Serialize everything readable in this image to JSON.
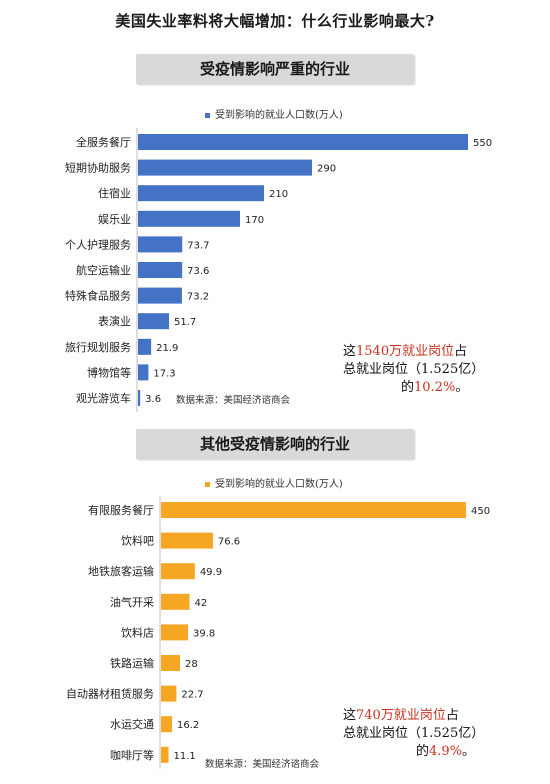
{
  "main_title": "美国失业率料将大幅增加：什么行业影响最大?",
  "source_note": "数据来源：美国经济谘商会",
  "chart_data": [
    {
      "type": "bar",
      "orientation": "horizontal",
      "title": "受疫情影响严重的行业",
      "legend": "受到影响的就业人口数(万人)",
      "color": "#4472c4",
      "xlim": [
        0,
        550
      ],
      "categories": [
        "全服务餐厅",
        "短期协助服务",
        "住宿业",
        "娱乐业",
        "个人护理服务",
        "航空运输业",
        "特殊食品服务",
        "表演业",
        "旅行规划服务",
        "博物馆等",
        "观光游览车"
      ],
      "series": [
        {
          "values": [
            550,
            290,
            210,
            170,
            73.7,
            73.6,
            73.2,
            51.7,
            21.9,
            17.3,
            3.6
          ]
        }
      ],
      "annotation": {
        "pre1": "这",
        "hl1": "1540万就业岗位",
        "post1": "占",
        "line2": "总就业岗位（1.525亿）",
        "pre3": "的",
        "hl3": "10.2%",
        "post3": "。"
      }
    },
    {
      "type": "bar",
      "orientation": "horizontal",
      "title": "其他受疫情影响的行业",
      "legend": "受到影响的就业人口数(万人)",
      "color": "#f5a623",
      "xlim": [
        0,
        450
      ],
      "categories": [
        "有限服务餐厅",
        "饮料吧",
        "地铁旅客运输",
        "油气开采",
        "饮料店",
        "铁路运输",
        "自动器材租赁服务",
        "水运交通",
        "咖啡厅等"
      ],
      "series": [
        {
          "values": [
            450,
            76.6,
            49.9,
            42,
            39.8,
            28,
            22.7,
            16.2,
            11.1
          ]
        }
      ],
      "annotation": {
        "pre1": "这",
        "hl1": "740万就业岗位",
        "post1": "占",
        "line2": "总就业岗位（1.525亿）",
        "pre3": "的",
        "hl3": "4.9%",
        "post3": "。"
      }
    }
  ]
}
